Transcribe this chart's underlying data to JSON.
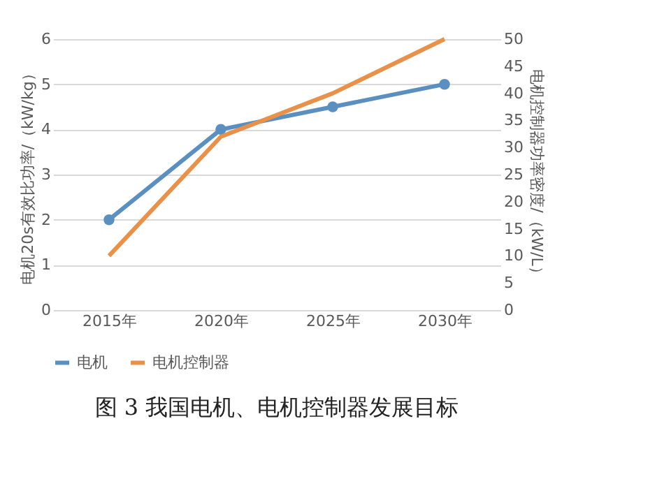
{
  "chart_data": {
    "type": "line",
    "title": "图 3 我国电机、电机控制器发展目标",
    "categories": [
      "2015年",
      "2020年",
      "2025年",
      "2030年"
    ],
    "series": [
      {
        "name": "电机",
        "color": "#5b8fc0",
        "values": [
          2,
          4,
          4.5,
          5
        ],
        "marker": "circle"
      },
      {
        "name": "电机控制器",
        "color": "#e8914a",
        "values": [
          10,
          32,
          40,
          50
        ],
        "axis": "y2"
      }
    ],
    "ylabel": "电机20s有效比功率/（kW/kg）",
    "y2label": "电机控制器功率密度/（kW/L）",
    "ylim": [
      0,
      6
    ],
    "yticks": [
      0,
      1,
      2,
      3,
      4,
      5,
      6
    ],
    "y2lim": [
      0,
      50
    ],
    "y2ticks": [
      0,
      5,
      10,
      15,
      20,
      25,
      30,
      35,
      40,
      45,
      50
    ],
    "grid": "y",
    "legend": "bottom",
    "line_style": "solid"
  }
}
